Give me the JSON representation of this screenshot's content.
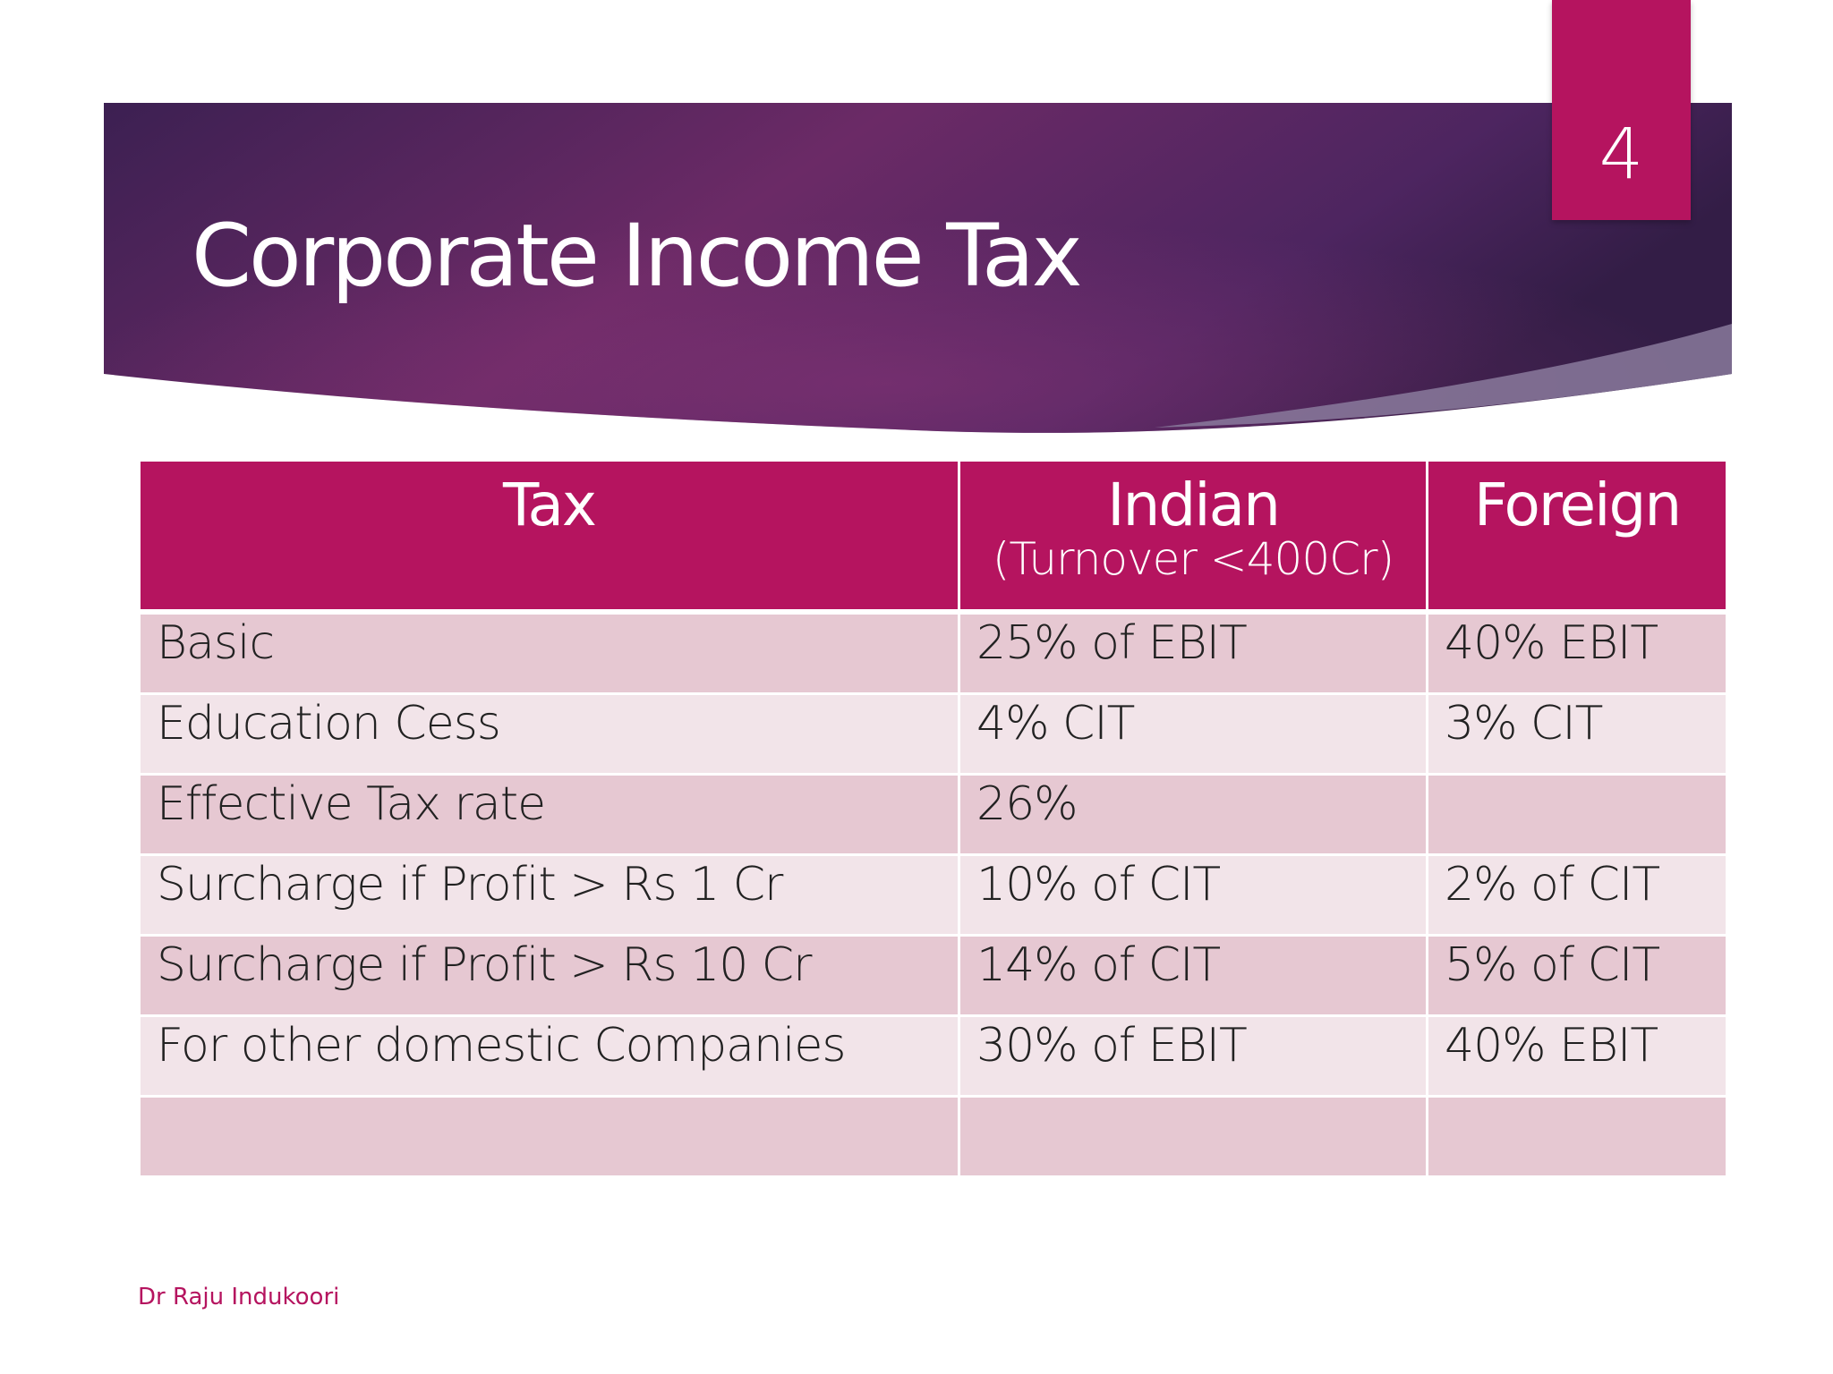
{
  "slide": {
    "title": "Corporate Income Tax",
    "page_number": "4",
    "author": "Dr Raju Indukoori",
    "colors": {
      "accent": "#b5145f",
      "banner_dark": "#3c2052",
      "banner_mid": "#6b2a66",
      "row_odd": "#e6c8d2",
      "row_even": "#f2e4e9"
    }
  },
  "table": {
    "headers": [
      {
        "main": "Tax",
        "sub": ""
      },
      {
        "main": "Indian",
        "sub": "(Turnover <400Cr)"
      },
      {
        "main": "Foreign",
        "sub": ""
      }
    ],
    "rows": [
      [
        "Basic",
        "25%  of EBIT",
        "40% EBIT"
      ],
      [
        "Education Cess",
        "4%  CIT",
        "3%  CIT"
      ],
      [
        "Effective Tax rate",
        "26%",
        ""
      ],
      [
        "Surcharge if  Profit > Rs 1 Cr",
        "10%  of CIT",
        "2%  of CIT"
      ],
      [
        "Surcharge if  Profit > Rs 10 Cr",
        "14% of CIT",
        "5%  of CIT"
      ],
      [
        "For other domestic Companies",
        "30%  of EBIT",
        "40% EBIT"
      ],
      [
        "",
        "",
        ""
      ]
    ]
  }
}
